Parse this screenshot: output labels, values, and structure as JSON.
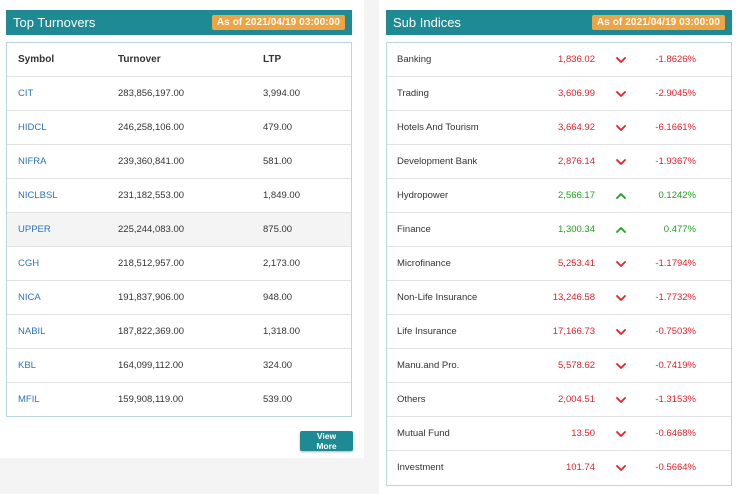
{
  "turnovers": {
    "title": "Top Turnovers",
    "as_of": "As of 2021/04/19 03:00:00",
    "columns": [
      "Symbol",
      "Turnover",
      "LTP"
    ],
    "rows": [
      {
        "symbol": "CIT",
        "turnover": "283,856,197.00",
        "ltp": "3,994.00"
      },
      {
        "symbol": "HIDCL",
        "turnover": "246,258,106.00",
        "ltp": "479.00"
      },
      {
        "symbol": "NIFRA",
        "turnover": "239,360,841.00",
        "ltp": "581.00"
      },
      {
        "symbol": "NICLBSL",
        "turnover": "231,182,553.00",
        "ltp": "1,849.00"
      },
      {
        "symbol": "UPPER",
        "turnover": "225,244,083.00",
        "ltp": "875.00"
      },
      {
        "symbol": "CGH",
        "turnover": "218,512,957.00",
        "ltp": "2,173.00"
      },
      {
        "symbol": "NICA",
        "turnover": "191,837,906.00",
        "ltp": "948.00"
      },
      {
        "symbol": "NABIL",
        "turnover": "187,822,369.00",
        "ltp": "1,318.00"
      },
      {
        "symbol": "KBL",
        "turnover": "164,099,112.00",
        "ltp": "324.00"
      },
      {
        "symbol": "MFIL",
        "turnover": "159,908,119.00",
        "ltp": "539.00"
      }
    ],
    "view_more": "View More"
  },
  "sub_indices": {
    "title": "Sub Indices",
    "as_of": "As of 2021/04/19 03:00:00",
    "rows": [
      {
        "name": "Banking",
        "value": "1,836.02",
        "change": "-1.8626%",
        "direction": "down"
      },
      {
        "name": "Trading",
        "value": "3,606.99",
        "change": "-2.9045%",
        "direction": "down"
      },
      {
        "name": "Hotels And Tourism",
        "value": "3,664.92",
        "change": "-6.1661%",
        "direction": "down"
      },
      {
        "name": "Development Bank",
        "value": "2,876.14",
        "change": "-1.9367%",
        "direction": "down"
      },
      {
        "name": "Hydropower",
        "value": "2,566.17",
        "change": "0.1242%",
        "direction": "up"
      },
      {
        "name": "Finance",
        "value": "1,300.34",
        "change": "0.477%",
        "direction": "up"
      },
      {
        "name": "Microfinance",
        "value": "5,253.41",
        "change": "-1.1794%",
        "direction": "down"
      },
      {
        "name": "Non-Life Insurance",
        "value": "13,246.58",
        "change": "-1.7732%",
        "direction": "down"
      },
      {
        "name": "Life Insurance",
        "value": "17,166.73",
        "change": "-0.7503%",
        "direction": "down"
      },
      {
        "name": "Manu.and Pro.",
        "value": "5,578.62",
        "change": "-0.7419%",
        "direction": "down"
      },
      {
        "name": "Others",
        "value": "2,004.51",
        "change": "-1.3153%",
        "direction": "down"
      },
      {
        "name": "Mutual Fund",
        "value": "13.50",
        "change": "-0.6468%",
        "direction": "down"
      },
      {
        "name": "Investment",
        "value": "101.74",
        "change": "-0.5664%",
        "direction": "down"
      }
    ]
  },
  "colors": {
    "header": "#1d8a94",
    "badge": "#f0a341",
    "negative": "#e2222b",
    "positive": "#1aa31a"
  }
}
